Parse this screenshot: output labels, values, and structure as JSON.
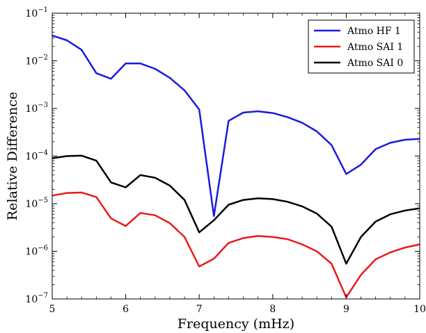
{
  "chart_data": {
    "type": "line",
    "xlabel": "Frequency (mHz)",
    "ylabel": "Relative Difference",
    "xlim": [
      5,
      10
    ],
    "ylim": [
      1e-07,
      0.1
    ],
    "yscale": "log",
    "grid": false,
    "legend_position": "top-right",
    "x_ticks": [
      5,
      6,
      7,
      8,
      9,
      10
    ],
    "y_ticks": [
      {
        "value": 1e-07,
        "base": "10",
        "exp": "−7"
      },
      {
        "value": 1e-06,
        "base": "10",
        "exp": "−6"
      },
      {
        "value": 1e-05,
        "base": "10",
        "exp": "−5"
      },
      {
        "value": 0.0001,
        "base": "10",
        "exp": "−4"
      },
      {
        "value": 0.001,
        "base": "10",
        "exp": "−3"
      },
      {
        "value": 0.01,
        "base": "10",
        "exp": "−2"
      },
      {
        "value": 0.1,
        "base": "10",
        "exp": "−1"
      }
    ],
    "x": [
      5.0,
      5.2,
      5.4,
      5.6,
      5.8,
      6.0,
      6.2,
      6.4,
      6.6,
      6.8,
      7.0,
      7.2,
      7.4,
      7.6,
      7.8,
      8.0,
      8.2,
      8.4,
      8.6,
      8.8,
      9.0,
      9.2,
      9.4,
      9.6,
      9.8,
      10.0
    ],
    "series": [
      {
        "name": "Atmo HF 1",
        "color": "#1a1adc",
        "values": [
          0.034,
          0.027,
          0.017,
          0.0055,
          0.0042,
          0.0088,
          0.0088,
          0.0068,
          0.0044,
          0.0024,
          0.00095,
          5.5e-06,
          0.00055,
          0.00082,
          0.00087,
          0.0008,
          0.00066,
          0.0005,
          0.00033,
          0.00017,
          4.2e-05,
          6.6e-05,
          0.00014,
          0.00019,
          0.00022,
          0.00023
        ]
      },
      {
        "name": "Atmo SAI 1",
        "color": "#e81a1a",
        "values": [
          1.48e-05,
          1.68e-05,
          1.72e-05,
          1.38e-05,
          4.9e-06,
          3.4e-06,
          6.4e-06,
          5.7e-06,
          3.9e-06,
          2e-06,
          4.8e-07,
          7e-07,
          1.5e-06,
          1.9e-06,
          2.1e-06,
          2e-06,
          1.8e-06,
          1.4e-06,
          1e-06,
          5.5e-07,
          1.08e-07,
          3.2e-07,
          6.8e-07,
          9.5e-07,
          1.2e-06,
          1.4e-06
        ]
      },
      {
        "name": "Atmo SAI 0",
        "color": "#000000",
        "values": [
          9e-05,
          0.0001,
          0.000102,
          8e-05,
          2.8e-05,
          2.2e-05,
          4e-05,
          3.5e-05,
          2.4e-05,
          1.2e-05,
          2.5e-06,
          4.5e-06,
          9.5e-06,
          1.2e-05,
          1.3e-05,
          1.25e-05,
          1.1e-05,
          8.8e-06,
          6.2e-06,
          3.3e-06,
          5.5e-07,
          2e-06,
          4.2e-06,
          6e-06,
          7.2e-06,
          8e-06
        ]
      }
    ]
  }
}
